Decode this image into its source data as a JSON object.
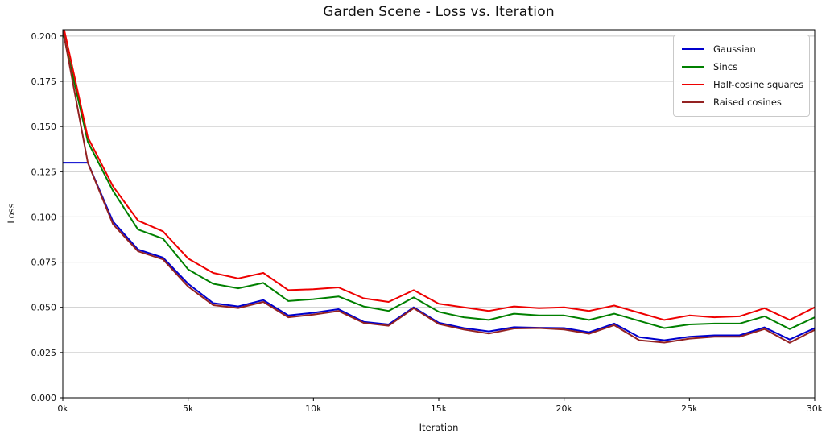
{
  "title": "Garden Scene - Loss vs. Iteration",
  "chart_data": {
    "type": "line",
    "title": "Garden Scene - Loss vs. Iteration",
    "xlabel": "Iteration",
    "ylabel": "Loss",
    "xlim": [
      0,
      30000
    ],
    "ylim": [
      0,
      0.2035
    ],
    "grid": "horizontal",
    "grid_color": "#c6c6c6",
    "legend_position": "upper right",
    "x_step": 1000,
    "x": [
      0,
      1000,
      2000,
      3000,
      4000,
      5000,
      6000,
      7000,
      8000,
      9000,
      10000,
      11000,
      12000,
      13000,
      14000,
      15000,
      16000,
      17000,
      18000,
      19000,
      20000,
      21000,
      22000,
      23000,
      24000,
      25000,
      26000,
      27000,
      28000,
      29000,
      30000
    ],
    "x_ticks": [
      0,
      5000,
      10000,
      15000,
      20000,
      25000,
      30000
    ],
    "x_tick_labels": [
      "0k",
      "5k",
      "10k",
      "15k",
      "20k",
      "25k",
      "30k"
    ],
    "y_ticks": [
      0.0,
      0.025,
      0.05,
      0.075,
      0.1,
      0.125,
      0.15,
      0.175,
      0.2
    ],
    "y_tick_labels": [
      "0.000",
      "0.025",
      "0.050",
      "0.075",
      "0.100",
      "0.125",
      "0.150",
      "0.175",
      "0.200"
    ],
    "series": [
      {
        "name": "Gaussian",
        "color": "#0000cd",
        "values": [
          0.13,
          0.13,
          0.0975,
          0.082,
          0.0775,
          0.063,
          0.0523,
          0.0505,
          0.054,
          0.0455,
          0.047,
          0.049,
          0.042,
          0.0405,
          0.05,
          0.0415,
          0.0385,
          0.0367,
          0.039,
          0.0387,
          0.0385,
          0.0362,
          0.041,
          0.0335,
          0.0318,
          0.0337,
          0.0345,
          0.0345,
          0.0389,
          0.0322,
          0.0385
        ]
      },
      {
        "name": "Sincs",
        "color": "#008000",
        "values": [
          0.2025,
          0.1415,
          0.1145,
          0.093,
          0.088,
          0.071,
          0.063,
          0.0605,
          0.0635,
          0.0535,
          0.0545,
          0.056,
          0.0505,
          0.048,
          0.0555,
          0.0475,
          0.0445,
          0.043,
          0.0465,
          0.0455,
          0.0455,
          0.043,
          0.0465,
          0.0425,
          0.0385,
          0.0405,
          0.041,
          0.041,
          0.045,
          0.038,
          0.0445
        ]
      },
      {
        "name": "Half-cosine squares",
        "color": "#ee0000",
        "values": [
          0.207,
          0.144,
          0.117,
          0.098,
          0.092,
          0.077,
          0.069,
          0.066,
          0.069,
          0.0595,
          0.06,
          0.061,
          0.055,
          0.053,
          0.0595,
          0.052,
          0.05,
          0.048,
          0.0505,
          0.0495,
          0.05,
          0.048,
          0.051,
          0.047,
          0.043,
          0.0455,
          0.0445,
          0.045,
          0.0495,
          0.043,
          0.05
        ]
      },
      {
        "name": "Raised cosines",
        "color": "#942222",
        "values": [
          0.204,
          0.13,
          0.096,
          0.081,
          0.0765,
          0.0615,
          0.0512,
          0.0496,
          0.053,
          0.0445,
          0.046,
          0.048,
          0.0414,
          0.0398,
          0.0495,
          0.0408,
          0.0377,
          0.0355,
          0.0383,
          0.0385,
          0.0377,
          0.0354,
          0.0401,
          0.0318,
          0.0305,
          0.0327,
          0.0337,
          0.0337,
          0.038,
          0.0304,
          0.0375
        ]
      }
    ]
  }
}
